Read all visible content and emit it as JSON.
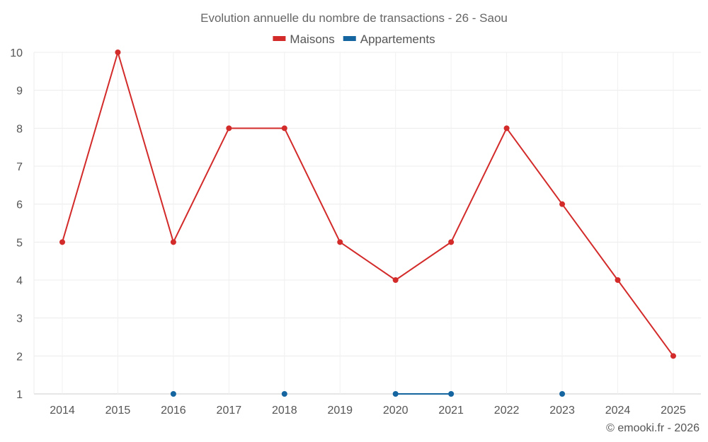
{
  "chart_data": {
    "type": "line",
    "title": "Evolution annuelle du nombre de transactions - 26 - Saou",
    "categories": [
      "2014",
      "2015",
      "2016",
      "2017",
      "2018",
      "2019",
      "2020",
      "2021",
      "2022",
      "2023",
      "2024",
      "2025"
    ],
    "ylim": [
      1,
      10
    ],
    "yticks": [
      1,
      2,
      3,
      4,
      5,
      6,
      7,
      8,
      9,
      10
    ],
    "grid": true,
    "legend_position": "top-center",
    "series": [
      {
        "name": "Maisons",
        "color": "#d32a2a",
        "values": [
          5,
          10,
          5,
          8,
          8,
          5,
          4,
          5,
          8,
          6,
          4,
          2
        ]
      },
      {
        "name": "Appartements",
        "color": "#1565a0",
        "values": [
          null,
          null,
          1,
          null,
          1,
          null,
          1,
          1,
          null,
          1,
          null,
          null
        ]
      }
    ]
  },
  "credit": "© emooki.fr - 2026"
}
